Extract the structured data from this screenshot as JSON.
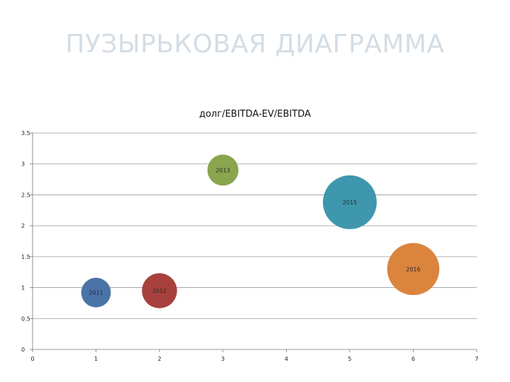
{
  "slide": {
    "title": "ПУЗЫРЬКОВАЯ ДИАГРАММА"
  },
  "chart_data": {
    "type": "bubble",
    "title": "долг/EBITDA-EV/EBITDA",
    "xlabel": "",
    "ylabel": "",
    "xlim": [
      0,
      7
    ],
    "ylim": [
      0,
      3.5
    ],
    "x_ticks": [
      0,
      1,
      2,
      3,
      4,
      5,
      6,
      7
    ],
    "y_ticks": [
      0,
      0.5,
      1,
      1.5,
      2,
      2.5,
      3,
      3.5
    ],
    "x_tick_labels": [
      "0",
      "1",
      "2",
      "3",
      "4",
      "5",
      "6",
      "7"
    ],
    "y_tick_labels": [
      "0",
      "0.5",
      "1",
      "1.5",
      "2",
      "2.5",
      "3",
      "3.5"
    ],
    "grid": "horizontal",
    "legend": "none",
    "points": [
      {
        "label": "2011",
        "x": 1,
        "y": 0.92,
        "size": 0.5,
        "color": "#4a73a8"
      },
      {
        "label": "2012",
        "x": 2,
        "y": 0.95,
        "size": 0.7,
        "color": "#a8413d"
      },
      {
        "label": "2013",
        "x": 3,
        "y": 2.9,
        "size": 0.55,
        "color": "#89a54e"
      },
      {
        "label": "2015",
        "x": 5,
        "y": 2.38,
        "size": 1.65,
        "color": "#3e97ad"
      },
      {
        "label": "2016",
        "x": 6,
        "y": 1.3,
        "size": 1.55,
        "color": "#db843d"
      }
    ]
  }
}
